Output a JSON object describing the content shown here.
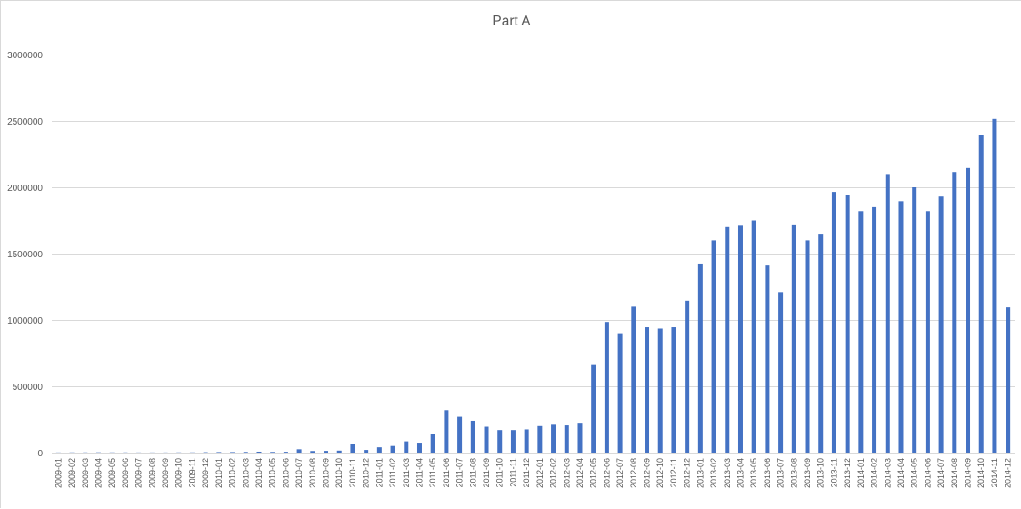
{
  "chart_data": {
    "type": "bar",
    "title": "Part A",
    "xlabel": "",
    "ylabel": "",
    "ylim": [
      0,
      3000000
    ],
    "yticks": [
      "0",
      "500000",
      "1000000",
      "1500000",
      "2000000",
      "2500000",
      "3000000"
    ],
    "grid": true,
    "legend": "none",
    "bar_color": "#4472C4",
    "categories": [
      "2009-01",
      "2009-02",
      "2009-03",
      "2009-04",
      "2009-05",
      "2009-06",
      "2009-07",
      "2009-08",
      "2009-09",
      "2009-10",
      "2009-11",
      "2009-12",
      "2010-01",
      "2010-02",
      "2010-03",
      "2010-04",
      "2010-05",
      "2010-06",
      "2010-07",
      "2010-08",
      "2010-09",
      "2010-10",
      "2010-11",
      "2010-12",
      "2011-01",
      "2011-02",
      "2011-03",
      "2011-04",
      "2011-05",
      "2011-06",
      "2011-07",
      "2011-08",
      "2011-09",
      "2011-10",
      "2011-11",
      "2011-12",
      "2012-01",
      "2012-02",
      "2012-03",
      "2012-04",
      "2012-05",
      "2012-06",
      "2012-07",
      "2012-08",
      "2012-09",
      "2012-10",
      "2012-11",
      "2012-12",
      "2013-01",
      "2013-02",
      "2013-03",
      "2013-04",
      "2013-05",
      "2013-06",
      "2013-07",
      "2013-08",
      "2013-09",
      "2013-10",
      "2013-11",
      "2013-12",
      "2014-01",
      "2014-02",
      "2014-03",
      "2014-04",
      "2014-05",
      "2014-06",
      "2014-07",
      "2014-08",
      "2014-09",
      "2014-10",
      "2014-11",
      "2014-12"
    ],
    "values": [
      1000,
      1500,
      1500,
      2000,
      1500,
      1500,
      1000,
      1000,
      1000,
      1500,
      1500,
      3000,
      4000,
      4000,
      5000,
      7000,
      5000,
      6000,
      25000,
      12000,
      13000,
      15000,
      65000,
      20000,
      40000,
      50000,
      85000,
      75000,
      140000,
      320000,
      270000,
      240000,
      195000,
      170000,
      170000,
      175000,
      200000,
      210000,
      205000,
      225000,
      660000,
      985000,
      900000,
      1100000,
      945000,
      935000,
      945000,
      1145000,
      1425000,
      1600000,
      1700000,
      1710000,
      1750000,
      1410000,
      1210000,
      1720000,
      1600000,
      1650000,
      1965000,
      1940000,
      1820000,
      1850000,
      2100000,
      1895000,
      2000000,
      1820000,
      1930000,
      2115000,
      2145000,
      2395000,
      2515000,
      1095000
    ]
  }
}
